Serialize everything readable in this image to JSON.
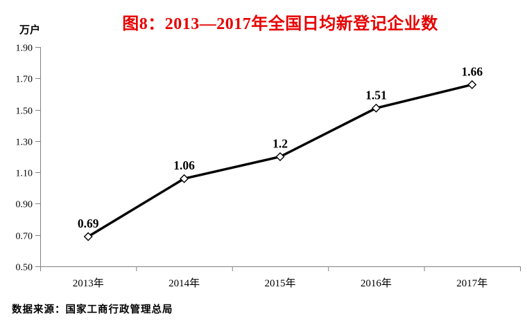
{
  "title": "图8：2013—2017年全国日均新登记企业数",
  "unit_label": "万户",
  "source": "数据来源：国家工商行政管理总局",
  "colors": {
    "title": "#e60000",
    "axis": "#808080",
    "line": "#000000",
    "marker_fill": "#ffffff",
    "marker_stroke": "#000000",
    "text": "#000000"
  },
  "chart_data": {
    "type": "line",
    "title": "图8：2013—2017年全国日均新登记企业数",
    "categories": [
      "2013年",
      "2014年",
      "2015年",
      "2016年",
      "2017年"
    ],
    "values": [
      0.69,
      1.06,
      1.2,
      1.51,
      1.66
    ],
    "value_labels": [
      "0.69",
      "1.06",
      "1.2",
      "1.51",
      "1.66"
    ],
    "xlabel": "",
    "ylabel": "万户",
    "ylim": [
      0.5,
      1.9
    ],
    "ytick_step": 0.2,
    "ytick_labels": [
      "0.50",
      "0.70",
      "0.90",
      "1.10",
      "1.30",
      "1.50",
      "1.70",
      "1.90"
    ],
    "grid": false,
    "legend": "none",
    "marker": "diamond"
  }
}
